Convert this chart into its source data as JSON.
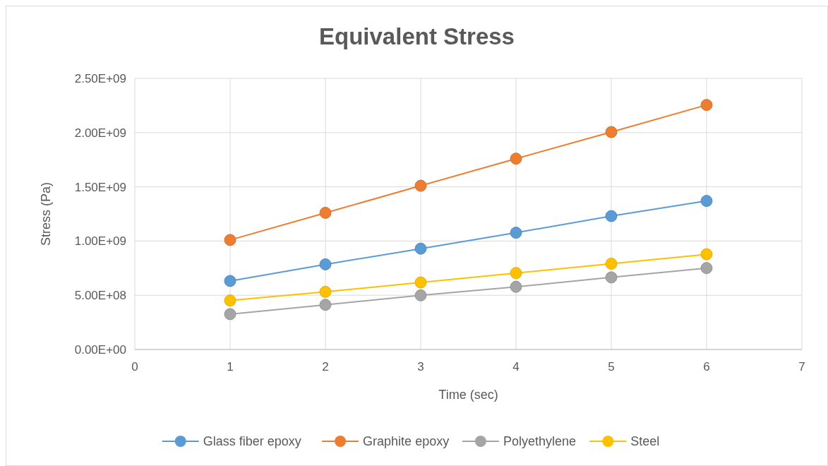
{
  "chart_data": {
    "type": "line",
    "title": "Equivalent Stress",
    "xlabel": "Time (sec)",
    "ylabel": "Stress (Pa)",
    "x": [
      1,
      2,
      3,
      4,
      5,
      6
    ],
    "series": [
      {
        "name": "Glass fiber epoxy",
        "color": "#5b9bd5",
        "values": [
          632000000,
          785000000,
          930000000,
          1077000000,
          1230000000,
          1370000000
        ]
      },
      {
        "name": "Graphite epoxy",
        "color": "#ed7d31",
        "values": [
          1010000000,
          1260000000,
          1510000000,
          1760000000,
          2005000000,
          2255000000
        ]
      },
      {
        "name": "Polyethylene",
        "color": "#a5a5a5",
        "values": [
          326000000,
          412000000,
          499000000,
          578000000,
          665000000,
          751000000
        ]
      },
      {
        "name": "Steel",
        "color": "#ffc000",
        "values": [
          452000000,
          532000000,
          618000000,
          705000000,
          791000000,
          878000000
        ]
      }
    ],
    "xlim": [
      0,
      7
    ],
    "xticks": [
      0,
      1,
      2,
      3,
      4,
      5,
      6,
      7
    ],
    "ylim": [
      0,
      2500000000
    ],
    "yticks": [
      {
        "value": 0,
        "label": "0.00E+00"
      },
      {
        "value": 500000000,
        "label": "5.00E+08"
      },
      {
        "value": 1000000000,
        "label": "1.00E+09"
      },
      {
        "value": 1500000000,
        "label": "1.50E+09"
      },
      {
        "value": 2000000000,
        "label": "2.00E+09"
      },
      {
        "value": 2500000000,
        "label": "2.50E+09"
      }
    ],
    "grid": true,
    "legend": "bottom",
    "marker": "circle",
    "line_style": "solid"
  }
}
